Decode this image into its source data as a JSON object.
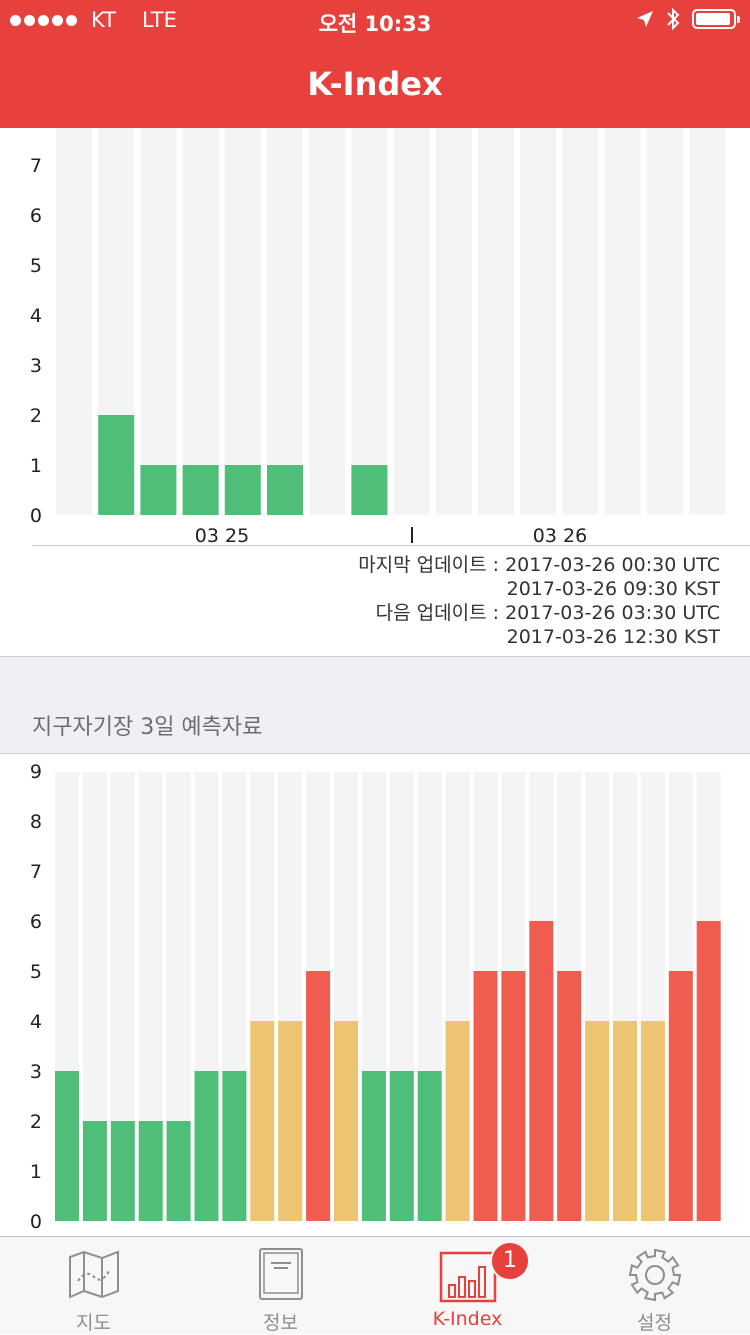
{
  "status_bar": {
    "carrier": "KT",
    "network": "LTE",
    "time": "오전 10:33"
  },
  "nav": {
    "title": "K-Index"
  },
  "updates": {
    "last_label_utc": "마지막 업데이트 : 2017-03-26 00:30 UTC",
    "last_kst": "2017-03-26 09:30 KST",
    "next_label_utc": "다음 업데이트 : 2017-03-26 03:30 UTC",
    "next_kst": "2017-03-26 12:30 KST"
  },
  "forecast_section": {
    "title": "지구자기장 3일 예측자료"
  },
  "chart_data": [
    {
      "type": "bar",
      "title": "",
      "xlabel": "",
      "ylabel": "",
      "ylim": [
        0,
        7
      ],
      "yticks": [
        0,
        1,
        2,
        3,
        4,
        5,
        6,
        7
      ],
      "date_labels": [
        "03  25",
        "03  26"
      ],
      "values": [
        null,
        2,
        1,
        1,
        1,
        1,
        null,
        1,
        null,
        null,
        null,
        null,
        null,
        null,
        null,
        null
      ],
      "bar_color": "#4fbe79",
      "background_bar_color": "#f4f4f4",
      "grid": false
    },
    {
      "type": "bar",
      "title": "",
      "xlabel": "",
      "ylabel": "",
      "ylim": [
        0,
        9
      ],
      "yticks": [
        0,
        1,
        2,
        3,
        4,
        5,
        6,
        7,
        8,
        9
      ],
      "values": [
        3,
        2,
        2,
        2,
        2,
        3,
        3,
        4,
        4,
        5,
        4,
        3,
        3,
        3,
        4,
        5,
        5,
        6,
        5,
        4,
        4,
        4,
        5,
        6
      ],
      "colors": {
        "low": "#4fbe79",
        "medium": "#edc572",
        "high": "#f05c4f"
      },
      "color_thresholds": {
        "medium_at": 4,
        "high_at": 5
      },
      "background_bar_color": "#f4f4f4",
      "grid": false
    }
  ],
  "tabs": [
    {
      "label": "지도",
      "icon": "map-icon",
      "active": false
    },
    {
      "label": "정보",
      "icon": "book-icon",
      "active": false
    },
    {
      "label": "K-Index",
      "icon": "bar-chart-icon",
      "active": true,
      "badge": "1"
    },
    {
      "label": "설정",
      "icon": "gear-icon",
      "active": false
    }
  ],
  "accent_color": "#e8413d"
}
